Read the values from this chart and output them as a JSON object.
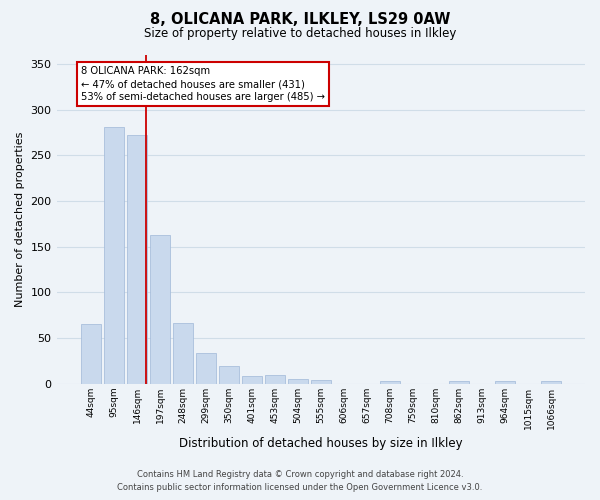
{
  "title": "8, OLICANA PARK, ILKLEY, LS29 0AW",
  "subtitle": "Size of property relative to detached houses in Ilkley",
  "xlabel": "Distribution of detached houses by size in Ilkley",
  "ylabel": "Number of detached properties",
  "bar_labels": [
    "44sqm",
    "95sqm",
    "146sqm",
    "197sqm",
    "248sqm",
    "299sqm",
    "350sqm",
    "401sqm",
    "453sqm",
    "504sqm",
    "555sqm",
    "606sqm",
    "657sqm",
    "708sqm",
    "759sqm",
    "810sqm",
    "862sqm",
    "913sqm",
    "964sqm",
    "1015sqm",
    "1066sqm"
  ],
  "bar_values": [
    65,
    281,
    272,
    163,
    67,
    34,
    19,
    8,
    10,
    5,
    4,
    0,
    0,
    3,
    0,
    0,
    3,
    0,
    3,
    0,
    3
  ],
  "bar_color": "#c9d9ed",
  "bar_edge_color": "#a0b8d8",
  "vline_color": "#cc0000",
  "vline_x_index": 2,
  "ylim": [
    0,
    360
  ],
  "yticks": [
    0,
    50,
    100,
    150,
    200,
    250,
    300,
    350
  ],
  "annotation_title": "8 OLICANA PARK: 162sqm",
  "annotation_line1": "← 47% of detached houses are smaller (431)",
  "annotation_line2": "53% of semi-detached houses are larger (485) →",
  "annotation_box_color": "#ffffff",
  "annotation_box_edge": "#cc0000",
  "grid_color": "#d0dde8",
  "bg_color": "#eef3f8",
  "footer1": "Contains HM Land Registry data © Crown copyright and database right 2024.",
  "footer2": "Contains public sector information licensed under the Open Government Licence v3.0."
}
